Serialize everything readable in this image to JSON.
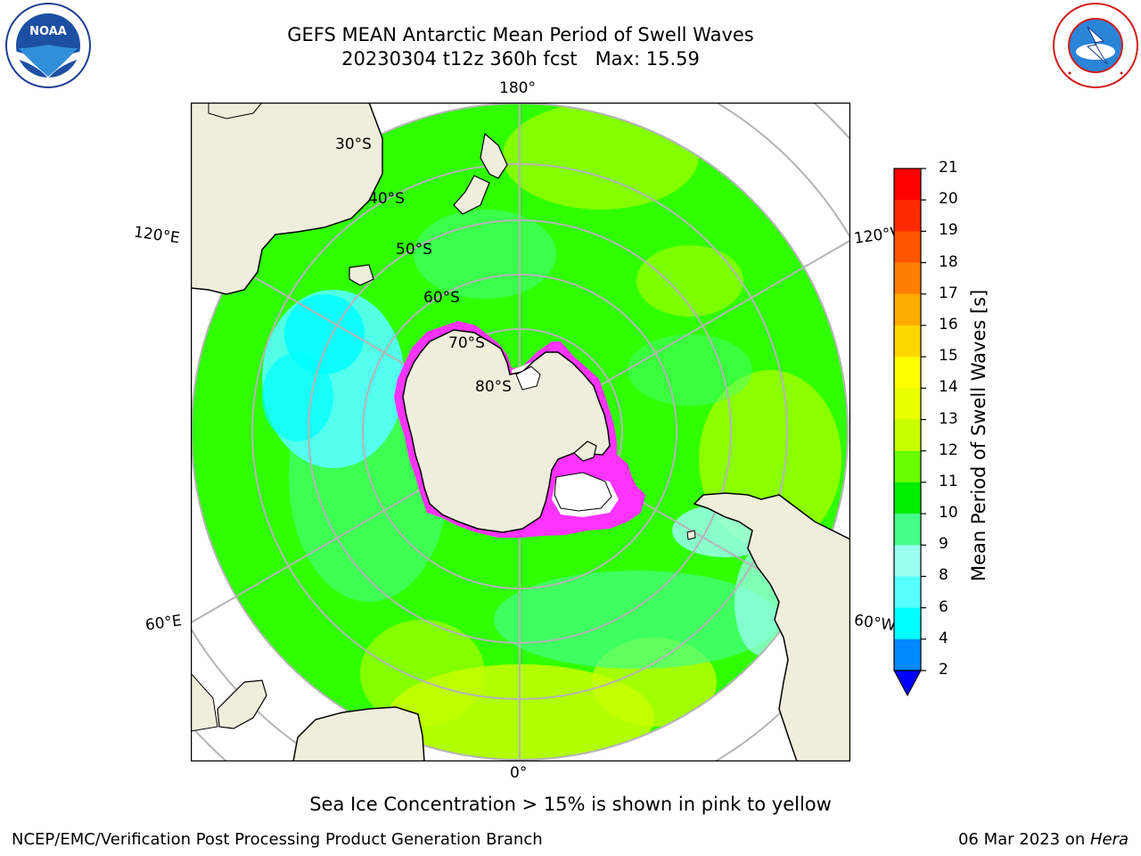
{
  "header": {
    "title_line1": "GEFS MEAN Antarctic Mean Period of Swell Waves",
    "title_line2": "20230304 t12z 360h fcst   Max: 15.59"
  },
  "logos": {
    "left": "noara-logo",
    "right": "national-weather-service-logo"
  },
  "map": {
    "projection": "south-polar-stereographic",
    "longitude_labels": {
      "top": "180°",
      "bottom": "0°",
      "upper_left": "120°E",
      "upper_right": "120°W",
      "lower_left": "60°E",
      "lower_right": "60°W"
    },
    "latitude_labels": [
      "30°S",
      "40°S",
      "50°S",
      "60°S",
      "70°S",
      "80°S"
    ],
    "colors": {
      "land": "#efeddc",
      "ocean_default": "#33ff00",
      "grid": "#b4b4b4",
      "ice": "#ff33ff",
      "ice_core": "#ffffff"
    }
  },
  "colorbar": {
    "title": "Mean Period of Swell Waves [s]",
    "ticks": [
      "21",
      "20",
      "19",
      "18",
      "17",
      "16",
      "15",
      "14",
      "13",
      "12",
      "11",
      "10",
      "9",
      "8",
      "6",
      "4",
      "2"
    ],
    "colors": [
      "#ff0000",
      "#ff2a00",
      "#ff5500",
      "#ff8000",
      "#ffaa00",
      "#ffd500",
      "#ffff00",
      "#eaff00",
      "#c8ff00",
      "#66ff00",
      "#00ee00",
      "#44ff88",
      "#99fff0",
      "#55ffff",
      "#00ffff",
      "#0088ff",
      "#0000ff"
    ]
  },
  "note": "Sea Ice Concentration > 15% is shown in pink to yellow",
  "footer": {
    "left": "NCEP/EMC/Verification Post Processing Product Generation Branch",
    "date": "06 Mar 2023 on ",
    "host": "Hera"
  }
}
